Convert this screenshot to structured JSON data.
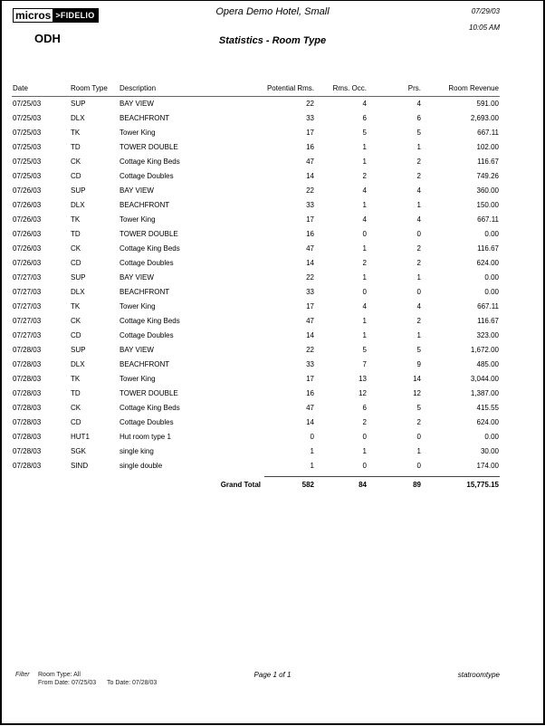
{
  "header": {
    "logo_text": "micros>FIDELIO",
    "property_code": "ODH",
    "hotel_name": "Opera Demo Hotel, Small",
    "report_title": "Statistics - Room Type",
    "print_date": "07/29/03",
    "print_time": "10:05 AM"
  },
  "columns": {
    "date": "Date",
    "room_type": "Room Type",
    "description": "Description",
    "potential": "Potential Rms.",
    "occupied": "Rms. Occ.",
    "persons": "Prs.",
    "revenue": "Room Revenue"
  },
  "rows": [
    [
      "07/25/03",
      "SUP",
      "BAY VIEW",
      "22",
      "4",
      "4",
      "591.00"
    ],
    [
      "07/25/03",
      "DLX",
      "BEACHFRONT",
      "33",
      "6",
      "6",
      "2,693.00"
    ],
    [
      "07/25/03",
      "TK",
      "Tower King",
      "17",
      "5",
      "5",
      "667.11"
    ],
    [
      "07/25/03",
      "TD",
      "TOWER DOUBLE",
      "16",
      "1",
      "1",
      "102.00"
    ],
    [
      "07/25/03",
      "CK",
      "Cottage King Beds",
      "47",
      "1",
      "2",
      "116.67"
    ],
    [
      "07/25/03",
      "CD",
      "Cottage Doubles",
      "14",
      "2",
      "2",
      "749.26"
    ],
    [
      "07/26/03",
      "SUP",
      "BAY VIEW",
      "22",
      "4",
      "4",
      "360.00"
    ],
    [
      "07/26/03",
      "DLX",
      "BEACHFRONT",
      "33",
      "1",
      "1",
      "150.00"
    ],
    [
      "07/26/03",
      "TK",
      "Tower King",
      "17",
      "4",
      "4",
      "667.11"
    ],
    [
      "07/26/03",
      "TD",
      "TOWER DOUBLE",
      "16",
      "0",
      "0",
      "0.00"
    ],
    [
      "07/26/03",
      "CK",
      "Cottage King Beds",
      "47",
      "1",
      "2",
      "116.67"
    ],
    [
      "07/26/03",
      "CD",
      "Cottage Doubles",
      "14",
      "2",
      "2",
      "624.00"
    ],
    [
      "07/27/03",
      "SUP",
      "BAY VIEW",
      "22",
      "1",
      "1",
      "0.00"
    ],
    [
      "07/27/03",
      "DLX",
      "BEACHFRONT",
      "33",
      "0",
      "0",
      "0.00"
    ],
    [
      "07/27/03",
      "TK",
      "Tower King",
      "17",
      "4",
      "4",
      "667.11"
    ],
    [
      "07/27/03",
      "CK",
      "Cottage King Beds",
      "47",
      "1",
      "2",
      "116.67"
    ],
    [
      "07/27/03",
      "CD",
      "Cottage Doubles",
      "14",
      "1",
      "1",
      "323.00"
    ],
    [
      "07/28/03",
      "SUP",
      "BAY VIEW",
      "22",
      "5",
      "5",
      "1,672.00"
    ],
    [
      "07/28/03",
      "DLX",
      "BEACHFRONT",
      "33",
      "7",
      "9",
      "485.00"
    ],
    [
      "07/28/03",
      "TK",
      "Tower King",
      "17",
      "13",
      "14",
      "3,044.00"
    ],
    [
      "07/28/03",
      "TD",
      "TOWER DOUBLE",
      "16",
      "12",
      "12",
      "1,387.00"
    ],
    [
      "07/28/03",
      "CK",
      "Cottage King Beds",
      "47",
      "6",
      "5",
      "415.55"
    ],
    [
      "07/28/03",
      "CD",
      "Cottage Doubles",
      "14",
      "2",
      "2",
      "624.00"
    ],
    [
      "07/28/03",
      "HUT1",
      "Hut room type 1",
      "0",
      "0",
      "0",
      "0.00"
    ],
    [
      "07/28/03",
      "SGK",
      "single king",
      "1",
      "1",
      "1",
      "30.00"
    ],
    [
      "07/28/03",
      "SIND",
      "single double",
      "1",
      "0",
      "0",
      "174.00"
    ]
  ],
  "grand_total": {
    "label": "Grand Total",
    "potential": "582",
    "occupied": "84",
    "persons": "89",
    "revenue": "15,775.15"
  },
  "footer": {
    "filter_label": "Filter",
    "room_type": "Room Type:  All",
    "from_date": "From Date:  07/25/03",
    "to_date": "To Date:  07/28/03",
    "page": "Page 1 of 1",
    "report_name": "statroomtype"
  }
}
